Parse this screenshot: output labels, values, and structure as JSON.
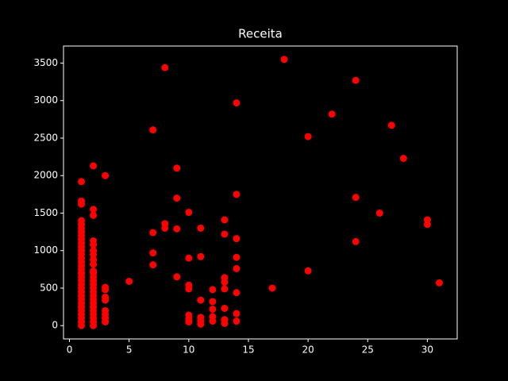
{
  "chart_data": {
    "type": "scatter",
    "title": "Receita",
    "color": "#ff0000",
    "x": [
      1,
      1,
      1,
      1,
      1,
      1,
      1,
      1,
      1,
      1,
      1,
      1,
      1,
      1,
      1,
      1,
      1,
      1,
      1,
      1,
      1,
      1,
      1,
      1,
      1,
      1,
      1,
      1,
      1,
      1,
      1,
      1,
      2,
      2,
      2,
      2,
      2,
      2,
      2,
      2,
      2,
      2,
      2,
      2,
      2,
      2,
      2,
      2,
      2,
      2,
      2,
      2,
      2,
      2,
      2,
      2,
      2,
      3,
      3,
      3,
      3,
      3,
      3,
      3,
      3,
      3,
      5,
      7,
      7,
      7,
      7,
      8,
      8,
      8,
      9,
      9,
      9,
      9,
      10,
      10,
      10,
      10,
      10,
      10,
      10,
      11,
      11,
      11,
      11,
      11,
      11,
      12,
      12,
      12,
      12,
      12,
      13,
      13,
      13,
      13,
      13,
      13,
      13,
      13,
      14,
      14,
      14,
      14,
      14,
      14,
      14,
      14,
      17,
      18,
      20,
      20,
      22,
      24,
      24,
      24,
      26,
      27,
      28,
      30,
      30,
      31
    ],
    "values": [
      1920,
      1660,
      1620,
      1400,
      1350,
      1300,
      1250,
      1200,
      1150,
      1100,
      1050,
      1000,
      950,
      900,
      850,
      800,
      750,
      700,
      650,
      600,
      550,
      500,
      450,
      400,
      350,
      300,
      250,
      200,
      150,
      100,
      50,
      0,
      2130,
      1550,
      1470,
      1130,
      1080,
      1000,
      950,
      880,
      820,
      730,
      700,
      650,
      600,
      550,
      500,
      450,
      400,
      350,
      300,
      250,
      200,
      150,
      100,
      50,
      0,
      2000,
      510,
      480,
      380,
      340,
      200,
      150,
      100,
      50,
      590,
      2610,
      1240,
      970,
      810,
      3440,
      1360,
      1300,
      2100,
      1700,
      1290,
      650,
      1510,
      900,
      540,
      490,
      140,
      90,
      50,
      1300,
      920,
      340,
      110,
      60,
      20,
      480,
      320,
      220,
      120,
      60,
      1410,
      1220,
      640,
      580,
      490,
      230,
      80,
      30,
      2970,
      1750,
      1160,
      910,
      760,
      440,
      160,
      60,
      500,
      3550,
      2520,
      730,
      2820,
      3270,
      1710,
      1120,
      1500,
      2670,
      2230,
      1410,
      1350,
      570
    ],
    "xlim": [
      -0.5,
      32.5
    ],
    "ylim": [
      -177.5,
      3727.5
    ],
    "xticks": [
      0,
      5,
      10,
      15,
      20,
      25,
      30
    ],
    "yticks": [
      0,
      500,
      1000,
      1500,
      2000,
      2500,
      3000,
      3500
    ]
  }
}
